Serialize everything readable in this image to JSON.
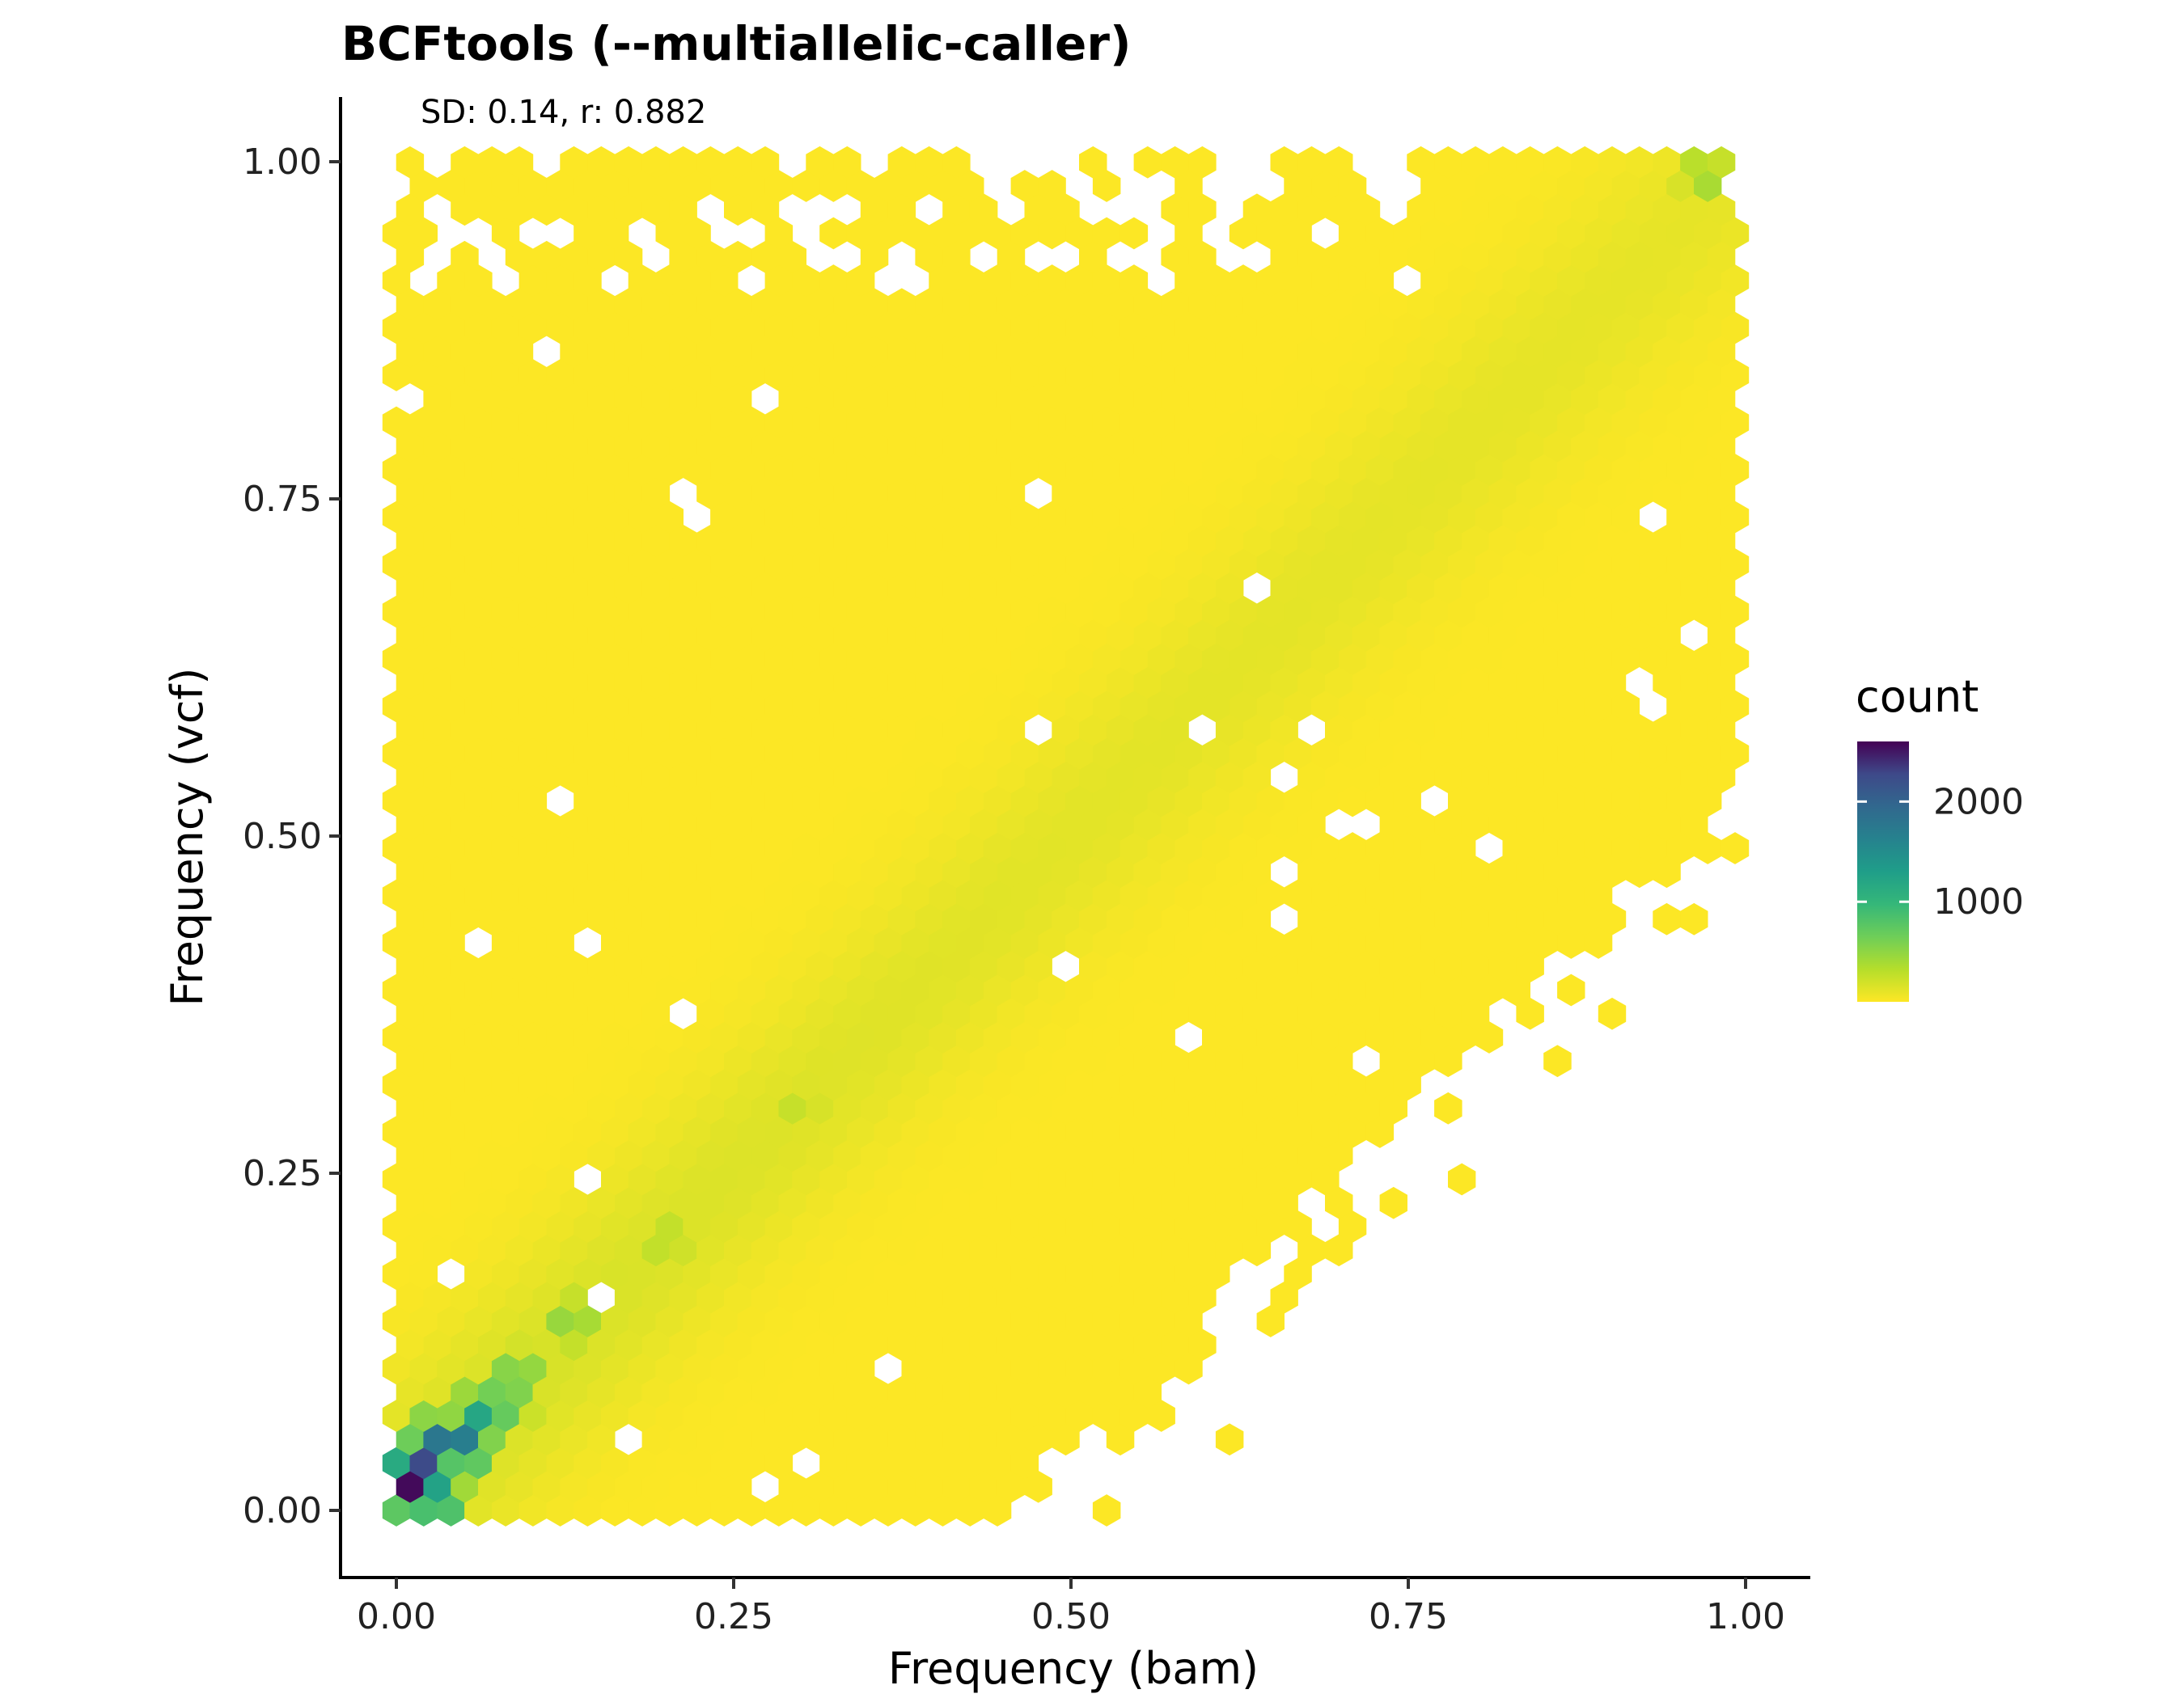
{
  "chart_data": {
    "type": "hexbin",
    "title": "BCFtools (--multiallelic-caller)",
    "annotation": "SD: 0.14, r: 0.882",
    "xlabel": "Frequency (bam)",
    "ylabel": "Frequency (vcf)",
    "xlim": [
      -0.02,
      1.1
    ],
    "ylim": [
      -0.05,
      1.05
    ],
    "xticks": [
      0.0,
      0.25,
      0.5,
      0.75,
      1.0
    ],
    "xtick_labels": [
      "0.00",
      "0.25",
      "0.50",
      "0.75",
      "1.00"
    ],
    "yticks": [
      0.0,
      0.25,
      0.5,
      0.75,
      1.0
    ],
    "ytick_labels": [
      "0.00",
      "0.25",
      "0.50",
      "0.75",
      "1.00"
    ],
    "grid": false,
    "colormap": "viridis (reversed: low = yellow, high = dark purple)",
    "legend": {
      "title": "count",
      "ticks": [
        1000,
        2000
      ],
      "tick_labels": [
        "1000",
        "2000"
      ],
      "range": [
        1,
        2600
      ],
      "placement": "right"
    },
    "density_summary": {
      "support": "dense coverage over x 0.00-1.00, y 0.00-1.00, upper-left triangle filled, lower-right sparse",
      "ridge": "counts concentrated along the diagonal y = x",
      "peak": {
        "x": 0.01,
        "y": 0.02,
        "count": 2600
      },
      "high_cells": [
        {
          "x": 0.01,
          "y": 0.02,
          "count": 2600
        },
        {
          "x": 0.02,
          "y": 0.03,
          "count": 2400
        },
        {
          "x": 0.03,
          "y": 0.05,
          "count": 1800
        },
        {
          "x": 0.05,
          "y": 0.05,
          "count": 1700
        },
        {
          "x": 0.03,
          "y": 0.01,
          "count": 1400
        },
        {
          "x": 0.06,
          "y": 0.07,
          "count": 1200
        },
        {
          "x": 0.08,
          "y": 0.08,
          "count": 900
        },
        {
          "x": 0.09,
          "y": 0.1,
          "count": 700
        },
        {
          "x": 0.13,
          "y": 0.14,
          "count": 550
        },
        {
          "x": 0.2,
          "y": 0.2,
          "count": 350
        },
        {
          "x": 0.3,
          "y": 0.3,
          "count": 280
        },
        {
          "x": 0.97,
          "y": 0.99,
          "count": 450
        }
      ]
    },
    "colors": {
      "low": "#fde725",
      "mid": "#21918c",
      "high": "#440154",
      "axis": "#000000"
    }
  }
}
